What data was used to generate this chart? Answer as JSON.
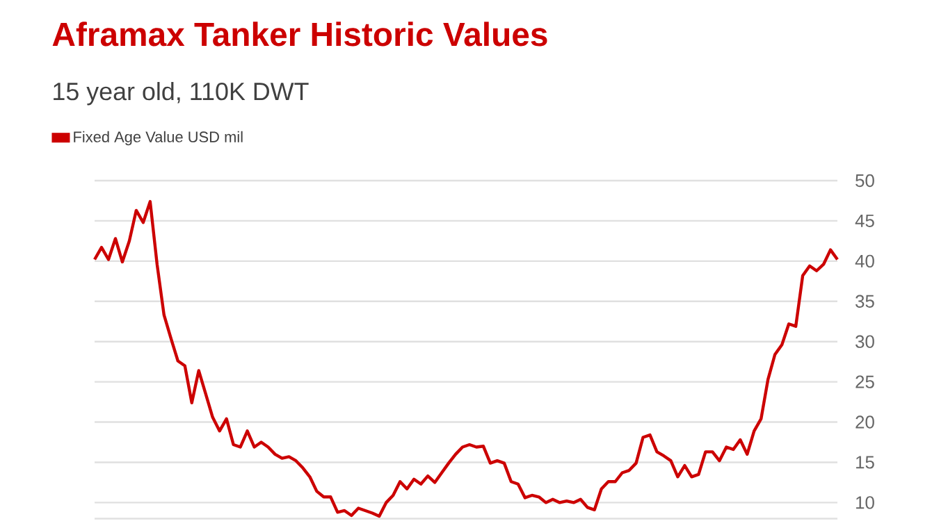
{
  "chart_data": {
    "type": "line",
    "title": "Aframax Tanker Historic Values",
    "subtitle": "15 year old, 110K DWT",
    "categories": [
      null,
      null,
      null,
      null,
      null,
      null,
      null,
      null,
      null,
      null,
      null,
      null,
      null,
      null,
      null,
      null,
      null,
      null,
      null,
      null,
      null,
      null,
      null,
      null,
      null,
      null,
      null,
      null,
      null,
      null,
      null,
      null,
      null,
      null,
      null,
      null,
      null,
      null,
      null,
      null,
      null,
      null,
      null,
      null,
      null,
      null,
      null,
      null,
      null,
      null,
      null,
      null,
      null,
      null,
      null,
      null,
      null,
      null,
      null,
      null,
      null,
      null,
      null,
      null,
      null,
      null,
      null,
      null,
      null,
      null,
      null,
      null,
      null,
      null,
      null,
      null,
      null,
      null,
      null,
      null,
      null,
      null,
      null,
      null,
      null,
      null,
      null,
      null,
      null,
      null,
      null,
      null,
      null,
      null,
      null,
      null,
      null,
      null,
      null,
      null,
      null,
      null,
      null,
      null,
      null,
      null,
      null,
      null
    ],
    "series": [
      {
        "name": "Fixed Age Value USD mil",
        "color": "#cc0000",
        "values": [
          40.2,
          41.7,
          40.2,
          42.8,
          39.9,
          42.5,
          46.3,
          44.8,
          47.4,
          39.6,
          33.3,
          30.4,
          27.6,
          27.0,
          22.4,
          26.4,
          23.5,
          20.6,
          18.9,
          20.4,
          17.2,
          16.9,
          18.9,
          16.9,
          17.5,
          16.9,
          16.0,
          15.5,
          15.7,
          15.2,
          14.3,
          13.2,
          11.4,
          10.7,
          10.7,
          8.8,
          9.0,
          8.4,
          9.3,
          9.0,
          8.7,
          8.3,
          10.0,
          10.9,
          12.6,
          11.7,
          12.9,
          12.3,
          13.3,
          12.5,
          13.7,
          14.9,
          16.0,
          16.9,
          17.2,
          16.9,
          17.0,
          14.9,
          15.2,
          14.9,
          12.6,
          12.3,
          10.6,
          10.9,
          10.7,
          10.0,
          10.4,
          10.0,
          10.2,
          10.0,
          10.4,
          9.4,
          9.1,
          11.7,
          12.6,
          12.6,
          13.7,
          14.0,
          14.9,
          18.1,
          18.4,
          16.3,
          15.8,
          15.2,
          13.2,
          14.6,
          13.2,
          13.5,
          16.3,
          16.3,
          15.2,
          16.9,
          16.6,
          17.8,
          16.0,
          18.9,
          20.4,
          25.3,
          28.4,
          29.6,
          32.2,
          31.9,
          38.2,
          39.4,
          38.8,
          39.6,
          41.4,
          40.2
        ]
      }
    ],
    "ylim": [
      8,
      50
    ],
    "yticks": [
      10,
      15,
      20,
      25,
      30,
      35,
      40,
      45,
      50
    ],
    "grid": "y",
    "legend": "top left",
    "tick_labels": "y"
  }
}
